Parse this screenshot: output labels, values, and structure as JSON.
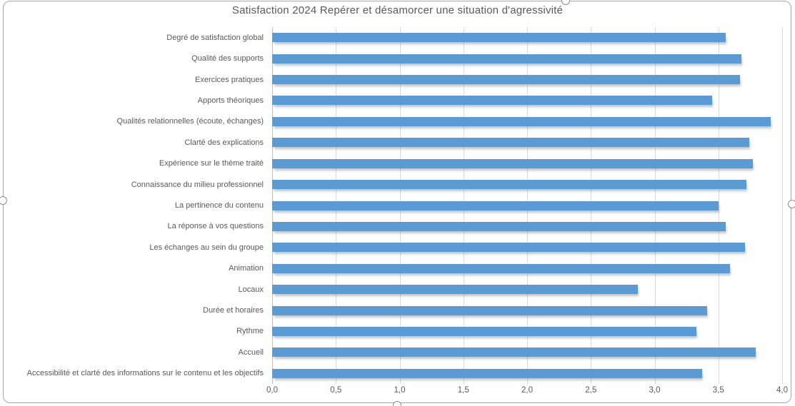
{
  "chart_data": {
    "type": "bar",
    "orientation": "horizontal",
    "title": "Satisfaction 2024 Repérer et désamorcer une situation d'agressivité",
    "categories": [
      "Degré de satisfaction global",
      "Qualité des supports",
      "Exercices pratiques",
      "Apports théoriques",
      "Qualités relationnelles (écoute, échanges)",
      "Clarté des explications",
      "Expérience sur le thème traité",
      "Connaissance du milieu professionnel",
      "La pertinence du contenu",
      "La réponse à vos questions",
      "Les échanges au sein du groupe",
      "Animation",
      "Locaux",
      "Durée et horaires",
      "Rythme",
      "Accueil",
      "Accessibilité et clarté des informations sur le contenu et les objectifs"
    ],
    "values": [
      3.56,
      3.68,
      3.67,
      3.45,
      3.91,
      3.74,
      3.77,
      3.72,
      3.5,
      3.56,
      3.71,
      3.59,
      2.87,
      3.41,
      3.33,
      3.79,
      3.37
    ],
    "xlim": [
      0,
      4
    ],
    "x_tick_labels": [
      "0,0",
      "0,5",
      "1,0",
      "1,5",
      "2,0",
      "2,5",
      "3,0",
      "3,5",
      "4,0"
    ],
    "x_tick_values": [
      0,
      0.5,
      1,
      1.5,
      2,
      2.5,
      3,
      3.5,
      4
    ],
    "grid": "vertical-major",
    "legend": "none",
    "decimal_separator": ","
  },
  "colors": {
    "bar": "#5B9BD5",
    "title_text": "#595959",
    "axis_text": "#595959",
    "gridline": "#D9D9D9",
    "axis_line": "#BFBFBF",
    "chart_border": "#A6A6A6",
    "background": "#FFFFFF"
  },
  "selection": {
    "state": "chart-selected",
    "handles": [
      "top",
      "right",
      "bottom",
      "left"
    ]
  }
}
